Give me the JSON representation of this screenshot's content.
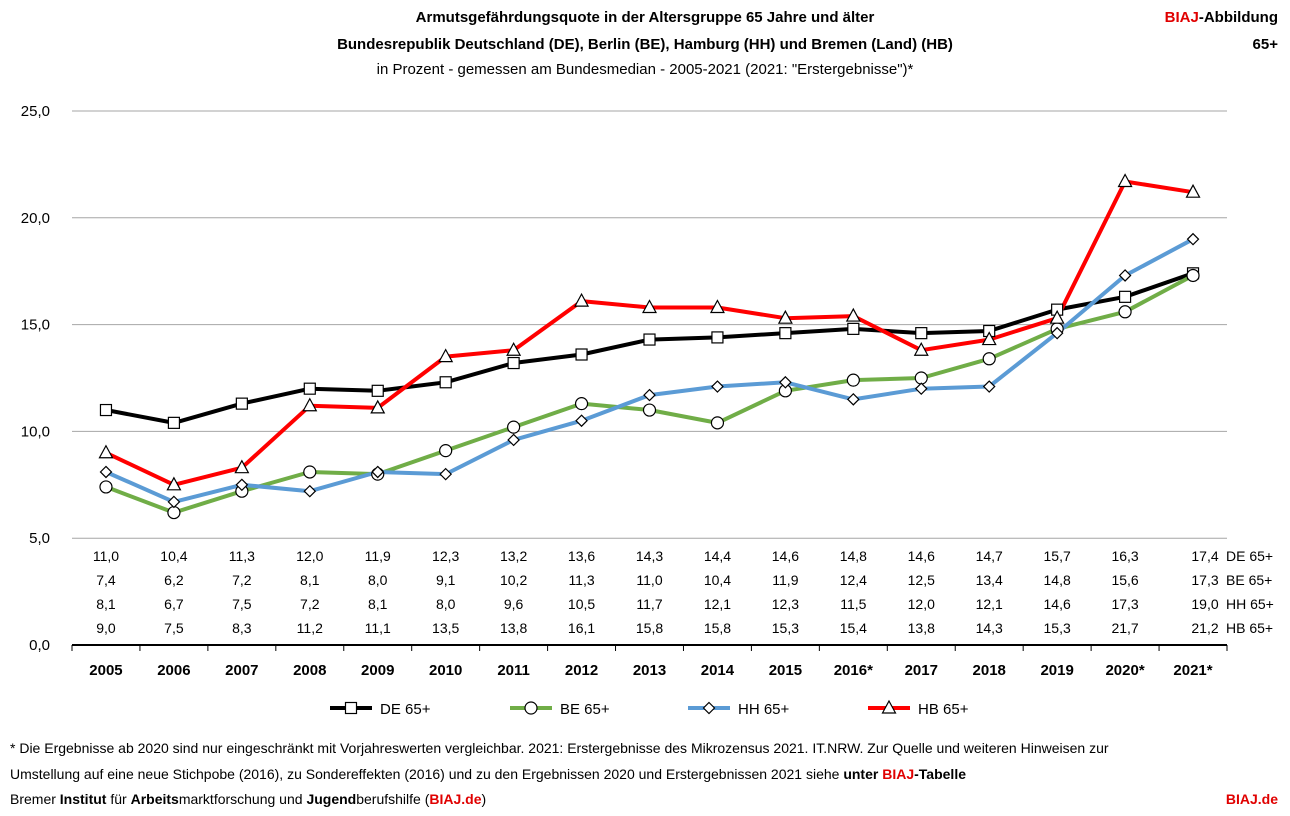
{
  "header": {
    "title_line1": "Armutsgefährdungsquote in der Altersgruppe 65 Jahre und älter",
    "title_line2": "Bundesrepublik Deutschland (DE), Berlin (BE), Hamburg (HH) und Bremen (Land) (HB)",
    "title_line3": "in Prozent - gemessen am Bundesmedian - 2005-2021 (2021: \"Erstergebnisse\")*",
    "badge_brand": "BIAJ",
    "badge_suffix": "-Abbildung",
    "badge_code": "65+"
  },
  "chart_data": {
    "type": "line",
    "categories": [
      "2005",
      "2006",
      "2007",
      "2008",
      "2009",
      "2010",
      "2011",
      "2012",
      "2013",
      "2014",
      "2015",
      "2016*",
      "2017",
      "2018",
      "2019",
      "2020*",
      "2021*"
    ],
    "y_ticks": [
      "25,0",
      "20,0",
      "15,0",
      "10,0",
      "5,0",
      "0,0"
    ],
    "ylim": [
      0,
      25
    ],
    "grid": true,
    "legend_position": "bottom",
    "series": [
      {
        "name": "DE 65+",
        "color": "#000000",
        "marker": "square",
        "values": [
          11.0,
          10.4,
          11.3,
          12.0,
          11.9,
          12.3,
          13.2,
          13.6,
          14.3,
          14.4,
          14.6,
          14.8,
          14.6,
          14.7,
          15.7,
          16.3,
          17.4
        ],
        "labels": [
          "11,0",
          "10,4",
          "11,3",
          "12,0",
          "11,9",
          "12,3",
          "13,2",
          "13,6",
          "14,3",
          "14,4",
          "14,6",
          "14,8",
          "14,6",
          "14,7",
          "15,7",
          "16,3",
          "17,4"
        ]
      },
      {
        "name": "BE 65+",
        "color": "#70ad47",
        "marker": "circle",
        "values": [
          7.4,
          6.2,
          7.2,
          8.1,
          8.0,
          9.1,
          10.2,
          11.3,
          11.0,
          10.4,
          11.9,
          12.4,
          12.5,
          13.4,
          14.8,
          15.6,
          17.3
        ],
        "labels": [
          "7,4",
          "6,2",
          "7,2",
          "8,1",
          "8,0",
          "9,1",
          "10,2",
          "11,3",
          "11,0",
          "10,4",
          "11,9",
          "12,4",
          "12,5",
          "13,4",
          "14,8",
          "15,6",
          "17,3"
        ]
      },
      {
        "name": "HH 65+",
        "color": "#5b9bd5",
        "marker": "diamond",
        "values": [
          8.1,
          6.7,
          7.5,
          7.2,
          8.1,
          8.0,
          9.6,
          10.5,
          11.7,
          12.1,
          12.3,
          11.5,
          12.0,
          12.1,
          14.6,
          17.3,
          19.0
        ],
        "labels": [
          "8,1",
          "6,7",
          "7,5",
          "7,2",
          "8,1",
          "8,0",
          "9,6",
          "10,5",
          "11,7",
          "12,1",
          "12,3",
          "11,5",
          "12,0",
          "12,1",
          "14,6",
          "17,3",
          "19,0"
        ]
      },
      {
        "name": "HB 65+",
        "color": "#ff0000",
        "marker": "triangle",
        "values": [
          9.0,
          7.5,
          8.3,
          11.2,
          11.1,
          13.5,
          13.8,
          16.1,
          15.8,
          15.8,
          15.3,
          15.4,
          13.8,
          14.3,
          15.3,
          21.7,
          21.2
        ],
        "labels": [
          "9,0",
          "7,5",
          "8,3",
          "11,2",
          "11,1",
          "13,5",
          "13,8",
          "16,1",
          "15,8",
          "15,8",
          "15,3",
          "15,4",
          "13,8",
          "14,3",
          "15,3",
          "21,7",
          "21,2"
        ]
      }
    ]
  },
  "footer": {
    "note_line1": "* Die Ergebnisse ab 2020 sind nur eingeschränkt mit Vorjahreswerten vergleichbar. 2021: Erstergebnisse des Mikrozensus 2021. IT.NRW.  Zur Quelle und weiteren Hinweisen zur",
    "note_line2_a": "Umstellung auf eine neue Stichpobe (2016), zu Sondereffekten (2016) und zu den Ergebnissen 2020 und Erstergebnissen 2021 siehe ",
    "note_line2_b": "unter ",
    "note_line2_brand": "BIAJ",
    "note_line2_c": "-Tabelle",
    "org_1": "Bremer ",
    "org_2": "Institut",
    "org_3": " für ",
    "org_4": "Arbeits",
    "org_5": "marktforschung und ",
    "org_6": "Jugend",
    "org_7": "berufshilfe (",
    "org_8": "BIAJ.de",
    "org_9": ")",
    "site": "BIAJ.de"
  },
  "colors": {
    "brand": "#e00000",
    "grid": "#a6a6a6"
  }
}
